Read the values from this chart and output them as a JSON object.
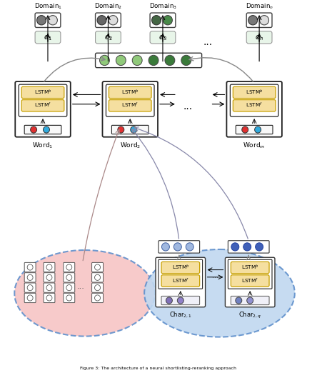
{
  "bg_color": "#ffffff",
  "lstm_box_color": "#f5dfa0",
  "lstm_border_color": "#c8a000",
  "outer_box_color": "#ffffff",
  "outer_box_border": "#222222",
  "green_light": "#90c97a",
  "green_dark": "#3a7a3a",
  "red_dot": "#e03030",
  "blue_dot": "#30aadd",
  "gray_dot": "#888888",
  "white_dot": "#ffffff",
  "purple_dot": "#8060c0",
  "blue_char_dot": "#7090d0",
  "dark_blue_dot": "#3050a0",
  "pink_blob": "#f7c5c5",
  "blue_blob": "#c0d8f0",
  "blob_border": "#6090cc",
  "domain_box_color": "#e8f5e9",
  "domain_border": "#888888",
  "arrow_color": "#666666",
  "text_color": "#111111",
  "dot_outline": "#333333"
}
